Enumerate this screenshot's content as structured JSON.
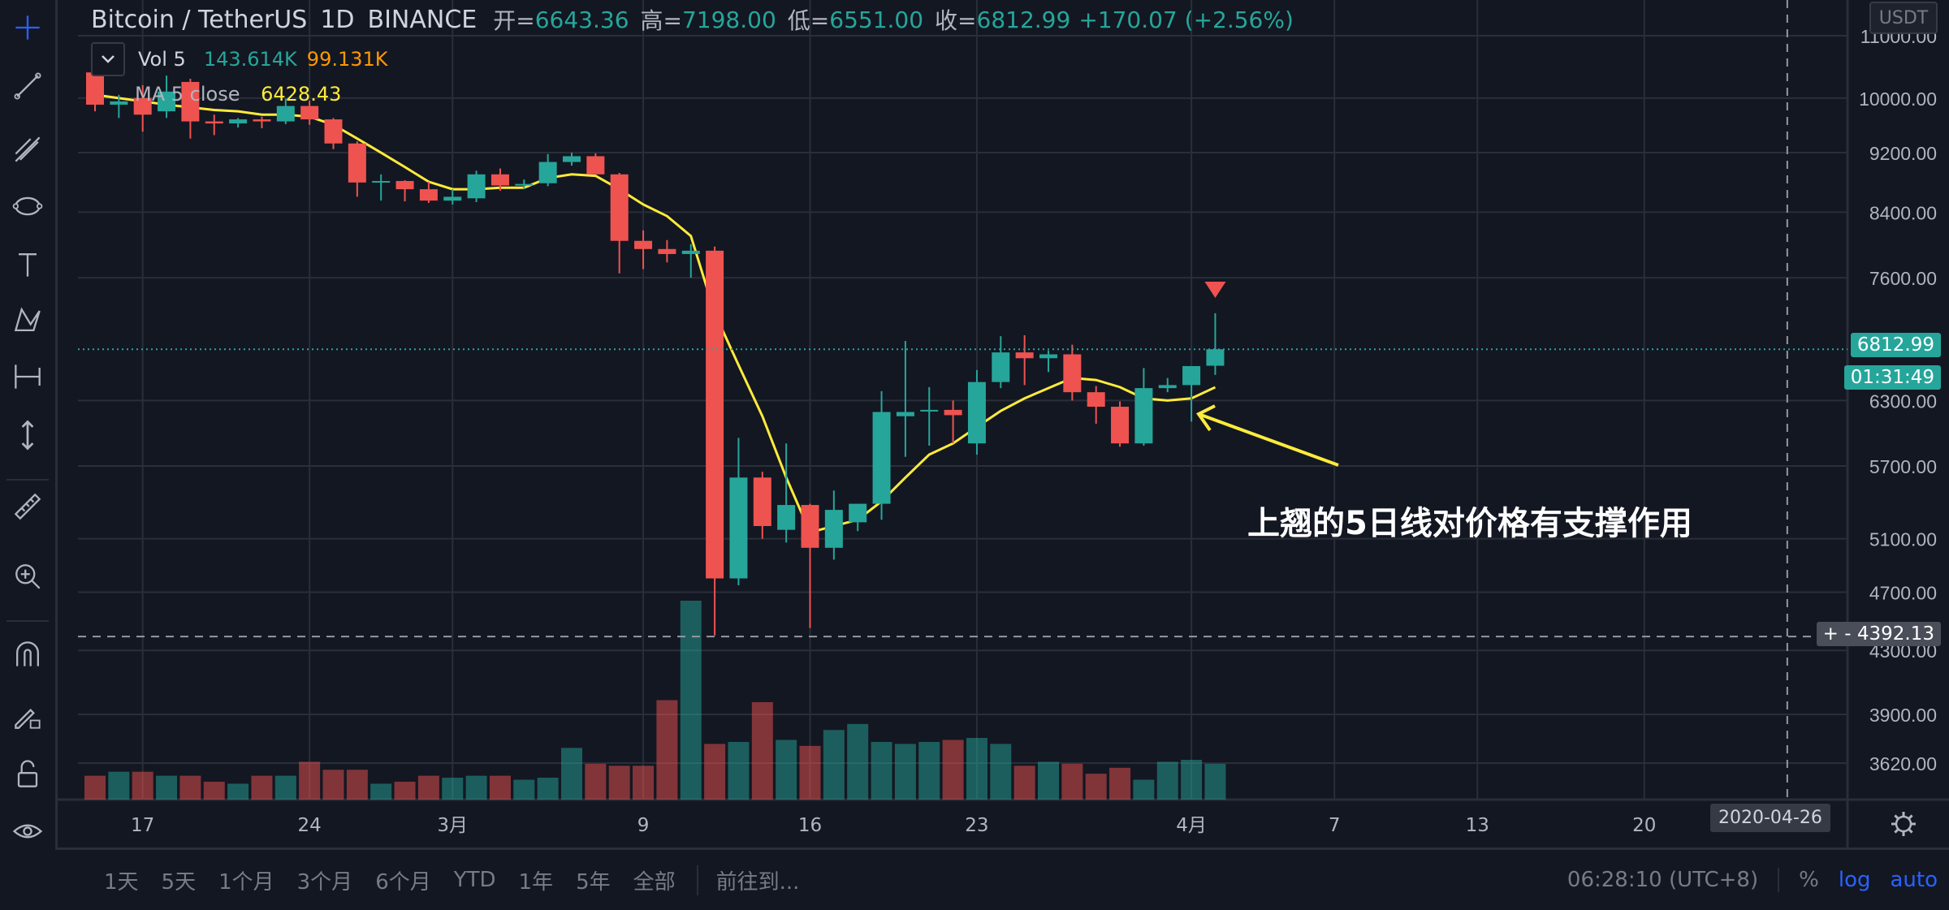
{
  "header": {
    "symbol": "Bitcoin / TetherUS",
    "interval": "1D",
    "exchange": "BINANCE",
    "open_label": "开=",
    "open": "6643.36",
    "high_label": "高=",
    "high": "7198.00",
    "low_label": "低=",
    "low": "6551.00",
    "close_label": "收=",
    "close": "6812.99",
    "change": "+170.07 (+2.56%)"
  },
  "volume_indicator": {
    "label": "Vol 5",
    "value1": "143.614K",
    "value2": "99.131K"
  },
  "ma_indicator": {
    "label": "MA 5 close",
    "value": "6428.43"
  },
  "annotation": {
    "text": "上翘的5日线对价格有支撑作用"
  },
  "price_axis": {
    "currency": "USDT",
    "last_price": "6812.99",
    "countdown": "01:31:49",
    "crosshair_price": "4392.13"
  },
  "crosshair_date": "2020-04-26",
  "range_buttons": [
    "1天",
    "5天",
    "1个月",
    "3个月",
    "6个月",
    "YTD",
    "1年",
    "5年",
    "全部"
  ],
  "goto_label": "前往到...",
  "clock": "06:28:10 (UTC+8)",
  "scale_buttons": {
    "percent": "%",
    "log": "log",
    "auto": "auto"
  },
  "colors": {
    "up": "#26a69a",
    "down": "#ef5350",
    "ma": "#ffeb3b",
    "background": "#131722",
    "grid": "#2a2e39"
  },
  "toolbar_icons": [
    "crosshair-icon",
    "trend-line-icon",
    "fib-icon",
    "pattern-icon",
    "text-icon",
    "xabcd-icon",
    "measure-icon",
    "arrow-updown-icon",
    "ruler-icon",
    "zoom-in-icon",
    "magnet-icon",
    "lock-draw-icon",
    "unlock-icon",
    "eye-icon"
  ],
  "chart_data": {
    "type": "candlestick",
    "title": "Bitcoin / TetherUS 1D BINANCE",
    "y_scale": "log",
    "ylim": [
      3500,
      11300
    ],
    "y_ticks": [
      11000,
      10000,
      9200,
      8400,
      7600,
      6300,
      5700,
      5100,
      4700,
      4300,
      3900,
      3620
    ],
    "y_tick_labels": [
      "11000.00",
      "10000.00",
      "9200.00",
      "8400.00",
      "7600.00",
      "6300.00",
      "5700.00",
      "5100.00",
      "4700.00",
      "4300.00",
      "3900.00",
      "3620.00"
    ],
    "x_ticks": [
      {
        "label": "17",
        "date": "2020-02-17"
      },
      {
        "label": "24",
        "date": "2020-02-24"
      },
      {
        "label": "3月",
        "date": "2020-03-01"
      },
      {
        "label": "9",
        "date": "2020-03-09"
      },
      {
        "label": "16",
        "date": "2020-03-16"
      },
      {
        "label": "23",
        "date": "2020-03-23"
      },
      {
        "label": "4月",
        "date": "2020-04-01"
      },
      {
        "label": "7",
        "date": "2020-04-07"
      },
      {
        "label": "13",
        "date": "2020-04-13"
      },
      {
        "label": "20",
        "date": "2020-04-20"
      }
    ],
    "first_date": "2020-02-15",
    "candles": [
      {
        "o": 10400,
        "h": 10450,
        "l": 9800,
        "c": 9900
      },
      {
        "o": 9900,
        "h": 10050,
        "l": 9700,
        "c": 9950
      },
      {
        "o": 10000,
        "h": 10200,
        "l": 9500,
        "c": 9750
      },
      {
        "o": 9800,
        "h": 10350,
        "l": 9700,
        "c": 10100
      },
      {
        "o": 10250,
        "h": 10300,
        "l": 9400,
        "c": 9650
      },
      {
        "o": 9650,
        "h": 9750,
        "l": 9450,
        "c": 9620
      },
      {
        "o": 9620,
        "h": 9700,
        "l": 9560,
        "c": 9680
      },
      {
        "o": 9680,
        "h": 9720,
        "l": 9550,
        "c": 9650
      },
      {
        "o": 9650,
        "h": 9990,
        "l": 9610,
        "c": 9880
      },
      {
        "o": 9880,
        "h": 9960,
        "l": 9600,
        "c": 9680
      },
      {
        "o": 9680,
        "h": 9700,
        "l": 9250,
        "c": 9330
      },
      {
        "o": 9330,
        "h": 9360,
        "l": 8600,
        "c": 8790
      },
      {
        "o": 8790,
        "h": 8900,
        "l": 8550,
        "c": 8810
      },
      {
        "o": 8810,
        "h": 8820,
        "l": 8540,
        "c": 8700
      },
      {
        "o": 8700,
        "h": 8800,
        "l": 8520,
        "c": 8550
      },
      {
        "o": 8550,
        "h": 8700,
        "l": 8500,
        "c": 8600
      },
      {
        "o": 8580,
        "h": 8950,
        "l": 8530,
        "c": 8900
      },
      {
        "o": 8900,
        "h": 8980,
        "l": 8680,
        "c": 8750
      },
      {
        "o": 8750,
        "h": 8830,
        "l": 8700,
        "c": 8770
      },
      {
        "o": 8780,
        "h": 9180,
        "l": 8740,
        "c": 9070
      },
      {
        "o": 9070,
        "h": 9200,
        "l": 9020,
        "c": 9150
      },
      {
        "o": 9150,
        "h": 9190,
        "l": 8950,
        "c": 8900
      },
      {
        "o": 8900,
        "h": 8920,
        "l": 7650,
        "c": 8040
      },
      {
        "o": 8040,
        "h": 8170,
        "l": 7700,
        "c": 7940
      },
      {
        "o": 7940,
        "h": 8050,
        "l": 7780,
        "c": 7880
      },
      {
        "o": 7880,
        "h": 8000,
        "l": 7600,
        "c": 7920
      },
      {
        "o": 7920,
        "h": 7970,
        "l": 4400,
        "c": 4800
      },
      {
        "o": 4800,
        "h": 5950,
        "l": 4750,
        "c": 5600
      },
      {
        "o": 5600,
        "h": 5650,
        "l": 5100,
        "c": 5200
      },
      {
        "o": 5170,
        "h": 5900,
        "l": 5070,
        "c": 5370
      },
      {
        "o": 5370,
        "h": 5380,
        "l": 4450,
        "c": 5030
      },
      {
        "o": 5030,
        "h": 5490,
        "l": 4940,
        "c": 5330
      },
      {
        "o": 5230,
        "h": 5370,
        "l": 5160,
        "c": 5380
      },
      {
        "o": 5380,
        "h": 6390,
        "l": 5250,
        "c": 6190
      },
      {
        "o": 6150,
        "h": 6900,
        "l": 5780,
        "c": 6190
      },
      {
        "o": 6200,
        "h": 6430,
        "l": 5880,
        "c": 6210
      },
      {
        "o": 6210,
        "h": 6300,
        "l": 5900,
        "c": 6160
      },
      {
        "o": 5900,
        "h": 6600,
        "l": 5800,
        "c": 6480
      },
      {
        "o": 6480,
        "h": 6950,
        "l": 6420,
        "c": 6780
      },
      {
        "o": 6780,
        "h": 6960,
        "l": 6450,
        "c": 6720
      },
      {
        "o": 6720,
        "h": 6800,
        "l": 6580,
        "c": 6760
      },
      {
        "o": 6760,
        "h": 6860,
        "l": 6300,
        "c": 6380
      },
      {
        "o": 6380,
        "h": 6440,
        "l": 6080,
        "c": 6240
      },
      {
        "o": 6240,
        "h": 6290,
        "l": 5870,
        "c": 5900
      },
      {
        "o": 5900,
        "h": 6620,
        "l": 5880,
        "c": 6420
      },
      {
        "o": 6420,
        "h": 6520,
        "l": 6380,
        "c": 6450
      },
      {
        "o": 6450,
        "h": 6600,
        "l": 6100,
        "c": 6640
      },
      {
        "o": 6643.36,
        "h": 7198,
        "l": 6551,
        "c": 6812.99
      }
    ],
    "ma5": [
      10050,
      10000,
      9950,
      9900,
      9860,
      9820,
      9800,
      9750,
      9750,
      9720,
      9600,
      9400,
      9200,
      9000,
      8800,
      8700,
      8700,
      8720,
      8720,
      8850,
      8900,
      8880,
      8700,
      8500,
      8350,
      8100,
      7200,
      6650,
      6150,
      5600,
      5150,
      5200,
      5250,
      5400,
      5600,
      5800,
      5900,
      6050,
      6200,
      6320,
      6420,
      6520,
      6500,
      6430,
      6320,
      6300,
      6320,
      6428.43
    ],
    "volume": [
      0.12,
      0.14,
      0.14,
      0.12,
      0.12,
      0.09,
      0.08,
      0.12,
      0.12,
      0.19,
      0.15,
      0.15,
      0.08,
      0.09,
      0.12,
      0.11,
      0.12,
      0.12,
      0.1,
      0.11,
      0.26,
      0.18,
      0.17,
      0.17,
      0.5,
      1.0,
      0.28,
      0.29,
      0.49,
      0.3,
      0.27,
      0.35,
      0.38,
      0.29,
      0.28,
      0.29,
      0.3,
      0.31,
      0.28,
      0.17,
      0.19,
      0.18,
      0.13,
      0.16,
      0.1,
      0.19,
      0.2,
      0.18
    ]
  }
}
